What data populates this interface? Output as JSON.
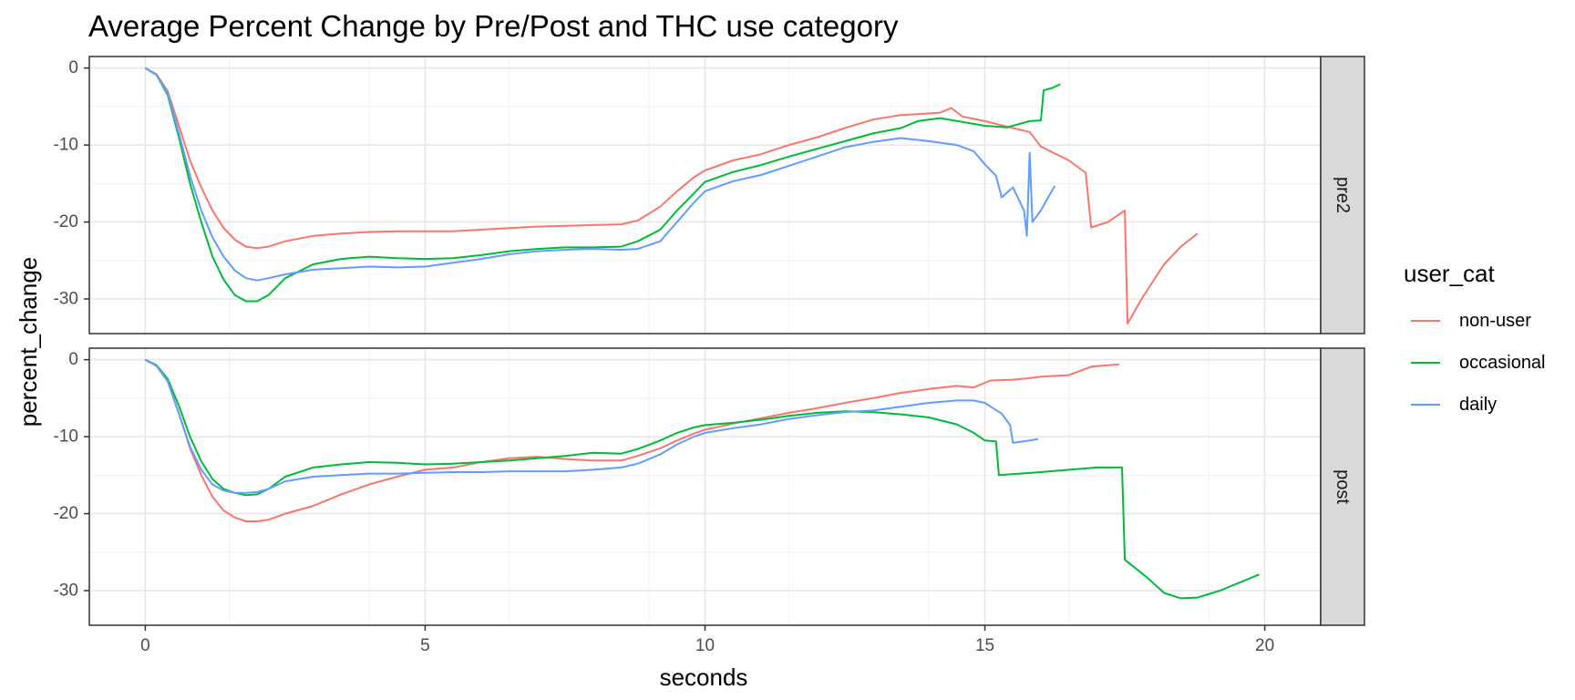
{
  "chart_data": {
    "type": "line",
    "title": "Average Percent Change by Pre/Post and THC use category",
    "xlabel": "seconds",
    "ylabel": "percent_change",
    "xlim": [
      -1,
      21
    ],
    "ylim": [
      -34.5,
      1.5
    ],
    "x_ticks": [
      0,
      5,
      10,
      15,
      20
    ],
    "y_ticks": [
      0,
      -10,
      -20,
      -30
    ],
    "grid": true,
    "legend": {
      "title": "user_cat",
      "placement": "right",
      "entries": [
        {
          "name": "non-user",
          "color": "#F8766D"
        },
        {
          "name": "occasional",
          "color": "#00BA38"
        },
        {
          "name": "daily",
          "color": "#619CFF"
        }
      ]
    },
    "facets": [
      {
        "label": "pre2",
        "series": [
          {
            "name": "non-user",
            "color": "#F8766D",
            "x": [
              0,
              0.2,
              0.4,
              0.6,
              0.8,
              1.0,
              1.2,
              1.4,
              1.6,
              1.8,
              2.0,
              2.2,
              2.5,
              3.0,
              3.5,
              4.0,
              4.5,
              5.0,
              5.5,
              6.0,
              6.5,
              7.0,
              7.5,
              8.0,
              8.5,
              8.8,
              9.2,
              9.5,
              9.8,
              10.0,
              10.5,
              11.0,
              11.5,
              12.0,
              12.5,
              13.0,
              13.5,
              13.8,
              14.2,
              14.4,
              14.6,
              14.8,
              15.0,
              15.5,
              15.8,
              16.0,
              16.5,
              16.8,
              16.9,
              17.2,
              17.5,
              17.55,
              17.8,
              18.2,
              18.5,
              18.8
            ],
            "y": [
              0,
              -0.8,
              -3,
              -7.5,
              -12,
              -15.5,
              -18.5,
              -20.8,
              -22.3,
              -23.2,
              -23.4,
              -23.2,
              -22.5,
              -21.8,
              -21.5,
              -21.3,
              -21.2,
              -21.2,
              -21.2,
              -21.0,
              -20.8,
              -20.6,
              -20.5,
              -20.4,
              -20.3,
              -19.8,
              -18,
              -16,
              -14.2,
              -13.3,
              -12,
              -11.2,
              -10.0,
              -9.0,
              -7.8,
              -6.7,
              -6.1,
              -6.0,
              -5.8,
              -5.2,
              -6.3,
              -6.6,
              -6.9,
              -7.8,
              -8.3,
              -10.2,
              -12,
              -13.6,
              -20.7,
              -20,
              -18.5,
              -33.2,
              -30,
              -25.5,
              -23.2,
              -21.5
            ]
          },
          {
            "name": "occasional",
            "color": "#00BA38",
            "x": [
              0,
              0.2,
              0.4,
              0.6,
              0.8,
              1.0,
              1.2,
              1.4,
              1.6,
              1.8,
              2.0,
              2.2,
              2.5,
              3.0,
              3.5,
              4.0,
              4.5,
              5.0,
              5.5,
              6.0,
              6.5,
              7.0,
              7.5,
              8.0,
              8.5,
              8.8,
              9.2,
              9.5,
              9.8,
              10.0,
              10.5,
              11.0,
              11.5,
              12.0,
              12.5,
              13.0,
              13.5,
              13.8,
              14.2,
              14.6,
              15.0,
              15.4,
              15.8,
              16.0,
              16.05,
              16.2,
              16.35
            ],
            "y": [
              0,
              -0.9,
              -3.5,
              -9,
              -15,
              -20,
              -24.5,
              -27.5,
              -29.5,
              -30.3,
              -30.3,
              -29.5,
              -27.3,
              -25.5,
              -24.8,
              -24.5,
              -24.7,
              -24.8,
              -24.7,
              -24.3,
              -23.8,
              -23.5,
              -23.3,
              -23.3,
              -23.2,
              -22.5,
              -21,
              -18.5,
              -16.3,
              -14.8,
              -13.5,
              -12.6,
              -11.5,
              -10.5,
              -9.5,
              -8.5,
              -7.8,
              -6.9,
              -6.5,
              -7.0,
              -7.5,
              -7.7,
              -6.9,
              -6.8,
              -2.9,
              -2.6,
              -2.1
            ]
          },
          {
            "name": "daily",
            "color": "#619CFF",
            "x": [
              0,
              0.2,
              0.4,
              0.6,
              0.8,
              1.0,
              1.2,
              1.4,
              1.6,
              1.8,
              2.0,
              2.2,
              2.5,
              3.0,
              3.5,
              4.0,
              4.5,
              5.0,
              5.5,
              6.0,
              6.5,
              7.0,
              7.5,
              8.0,
              8.5,
              8.8,
              9.2,
              9.5,
              9.8,
              10.0,
              10.5,
              11.0,
              11.5,
              12.0,
              12.5,
              13.0,
              13.5,
              14.0,
              14.5,
              14.8,
              15.0,
              15.2,
              15.3,
              15.5,
              15.7,
              15.75,
              15.8,
              15.85,
              15.9,
              16.0,
              16.1,
              16.25
            ],
            "y": [
              0,
              -0.9,
              -3.3,
              -8.5,
              -14,
              -18.5,
              -22,
              -24.5,
              -26.3,
              -27.3,
              -27.6,
              -27.3,
              -26.8,
              -26.2,
              -26,
              -25.8,
              -25.9,
              -25.8,
              -25.3,
              -24.8,
              -24.2,
              -23.8,
              -23.6,
              -23.5,
              -23.6,
              -23.5,
              -22.5,
              -20,
              -17.5,
              -16.0,
              -14.7,
              -13.9,
              -12.7,
              -11.5,
              -10.3,
              -9.6,
              -9.1,
              -9.5,
              -10.0,
              -10.8,
              -12.5,
              -14,
              -16.8,
              -15.5,
              -18.5,
              -21.8,
              -11.0,
              -20,
              -19.5,
              -18.5,
              -17.2,
              -15.3
            ]
          }
        ]
      },
      {
        "label": "post",
        "series": [
          {
            "name": "non-user",
            "color": "#F8766D",
            "x": [
              0,
              0.2,
              0.4,
              0.6,
              0.8,
              1.0,
              1.2,
              1.4,
              1.6,
              1.8,
              2.0,
              2.2,
              2.5,
              3.0,
              3.5,
              4.0,
              4.5,
              5.0,
              5.5,
              6.0,
              6.5,
              7.0,
              7.5,
              8.0,
              8.5,
              8.8,
              9.2,
              9.5,
              9.8,
              10.0,
              10.5,
              11.0,
              11.5,
              12.0,
              12.5,
              13.0,
              13.5,
              14.0,
              14.5,
              14.8,
              15.1,
              15.5,
              15.8,
              16.0,
              16.5,
              16.9,
              17.4
            ],
            "y": [
              0,
              -0.8,
              -2.8,
              -7,
              -11.5,
              -15,
              -17.8,
              -19.6,
              -20.5,
              -21.0,
              -21.0,
              -20.8,
              -20,
              -19,
              -17.5,
              -16.2,
              -15.2,
              -14.3,
              -14.0,
              -13.3,
              -12.8,
              -12.6,
              -12.9,
              -13.1,
              -13.1,
              -12.5,
              -11.5,
              -10.5,
              -9.6,
              -9.1,
              -8.3,
              -7.6,
              -6.9,
              -6.3,
              -5.6,
              -5.0,
              -4.3,
              -3.8,
              -3.4,
              -3.6,
              -2.7,
              -2.6,
              -2.4,
              -2.2,
              -2.0,
              -0.9,
              -0.6
            ]
          },
          {
            "name": "occasional",
            "color": "#00BA38",
            "x": [
              0,
              0.2,
              0.4,
              0.6,
              0.8,
              1.0,
              1.2,
              1.4,
              1.6,
              1.8,
              2.0,
              2.2,
              2.5,
              3.0,
              3.5,
              4.0,
              4.5,
              5.0,
              5.5,
              6.0,
              6.5,
              7.0,
              7.5,
              8.0,
              8.5,
              8.8,
              9.2,
              9.5,
              9.8,
              10.0,
              10.5,
              11.0,
              11.5,
              12.0,
              12.5,
              13.0,
              13.5,
              14.0,
              14.5,
              14.8,
              15.0,
              15.2,
              15.25,
              16.0,
              17.0,
              17.45,
              17.5,
              17.9,
              18.2,
              18.5,
              18.8,
              19.2,
              19.6,
              19.9
            ],
            "y": [
              0,
              -0.7,
              -2.5,
              -6,
              -10,
              -13.2,
              -15.5,
              -16.8,
              -17.3,
              -17.6,
              -17.5,
              -16.8,
              -15.2,
              -14,
              -13.6,
              -13.3,
              -13.4,
              -13.6,
              -13.5,
              -13.3,
              -13.1,
              -12.8,
              -12.5,
              -12.1,
              -12.2,
              -11.6,
              -10.5,
              -9.5,
              -8.8,
              -8.5,
              -8.2,
              -7.8,
              -7.3,
              -6.9,
              -6.7,
              -6.8,
              -7.1,
              -7.5,
              -8.4,
              -9.5,
              -10.5,
              -10.6,
              -15.0,
              -14.6,
              -14.0,
              -14.0,
              -26.0,
              -28.3,
              -30.3,
              -31.0,
              -30.9,
              -30.0,
              -28.8,
              -27.9
            ]
          },
          {
            "name": "daily",
            "color": "#619CFF",
            "x": [
              0,
              0.2,
              0.4,
              0.6,
              0.8,
              1.0,
              1.2,
              1.4,
              1.6,
              1.8,
              2.0,
              2.2,
              2.5,
              3.0,
              3.5,
              4.0,
              4.5,
              5.0,
              5.5,
              6.0,
              6.5,
              7.0,
              7.5,
              8.0,
              8.5,
              8.8,
              9.2,
              9.5,
              9.8,
              10.0,
              10.5,
              11.0,
              11.5,
              12.0,
              12.5,
              13.0,
              13.5,
              14.0,
              14.5,
              14.8,
              15.0,
              15.3,
              15.45,
              15.5,
              15.8,
              15.95
            ],
            "y": [
              0,
              -0.8,
              -2.8,
              -7,
              -11.3,
              -14.3,
              -16.2,
              -17.0,
              -17.3,
              -17.3,
              -17.2,
              -16.8,
              -15.8,
              -15.2,
              -15.0,
              -14.8,
              -14.8,
              -14.7,
              -14.6,
              -14.6,
              -14.5,
              -14.5,
              -14.5,
              -14.3,
              -14.0,
              -13.5,
              -12.3,
              -11.0,
              -10.0,
              -9.5,
              -8.9,
              -8.4,
              -7.7,
              -7.2,
              -6.8,
              -6.6,
              -6.1,
              -5.6,
              -5.3,
              -5.3,
              -5.6,
              -7.0,
              -8.5,
              -10.8,
              -10.5,
              -10.3
            ]
          }
        ]
      }
    ]
  }
}
